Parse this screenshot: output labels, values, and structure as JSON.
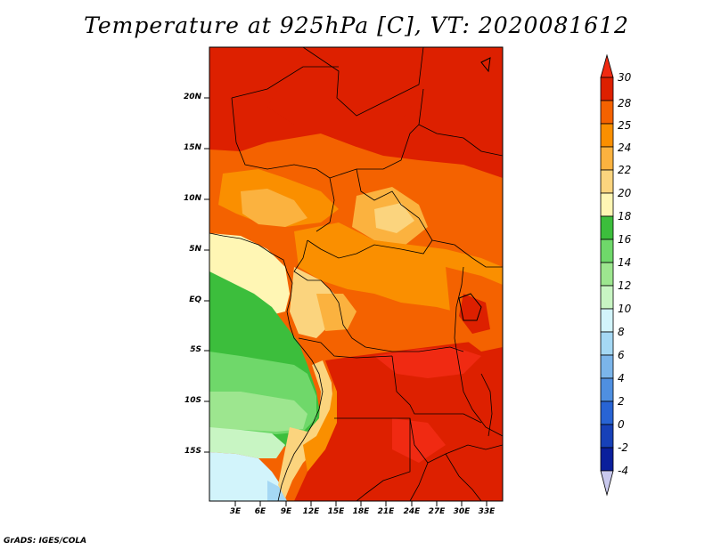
{
  "title": "Temperature at 925hPa [C], VT: 2020081612",
  "credit": "GrADS: IGES/COLA",
  "lat_labels": [
    "20N",
    "15N",
    "10N",
    "5N",
    "EQ",
    "5S",
    "10S",
    "15S"
  ],
  "lon_labels": [
    "3E",
    "6E",
    "9E",
    "12E",
    "15E",
    "18E",
    "21E",
    "24E",
    "27E",
    "30E",
    "33E"
  ],
  "colorbar": {
    "labels": [
      "30",
      "28",
      "25",
      "24",
      "22",
      "20",
      "18",
      "16",
      "14",
      "12",
      "10",
      "8",
      "6",
      "4",
      "2",
      "0",
      "-2",
      "-4"
    ],
    "colors": [
      "#f02a12",
      "#dd2000",
      "#f46200",
      "#fa8f00",
      "#fbb23f",
      "#fbd47e",
      "#fff6b4",
      "#3cbe3c",
      "#6fd86a",
      "#9de68f",
      "#c8f5c3",
      "#d2f4fb",
      "#a5d8f4",
      "#7bb5ea",
      "#4f8fe0",
      "#2864d4",
      "#1741b8",
      "#0a1f9c",
      "#061070",
      "#c9c9ee"
    ]
  }
}
